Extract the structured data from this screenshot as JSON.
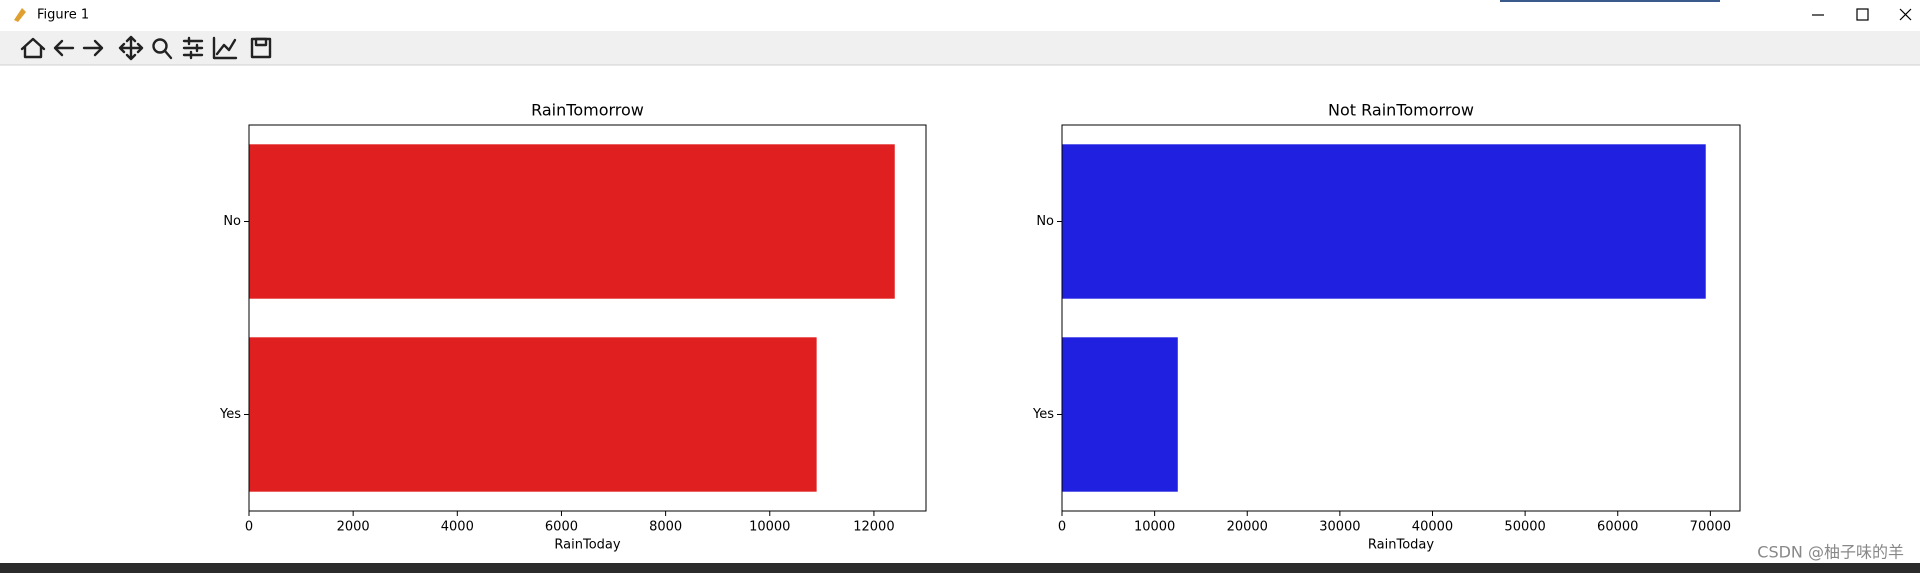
{
  "window": {
    "title": "Figure 1"
  },
  "chart_data": [
    {
      "type": "barh",
      "title": "RainTomorrow",
      "xlabel": "RainToday",
      "categories": [
        "No",
        "Yes"
      ],
      "values": [
        12400,
        10900
      ],
      "color": "#e02020",
      "xlim": [
        0,
        13000
      ],
      "xticks": [
        0,
        2000,
        4000,
        6000,
        8000,
        10000,
        12000
      ]
    },
    {
      "type": "barh",
      "title": "Not RainTomorrow",
      "xlabel": "RainToday",
      "categories": [
        "No",
        "Yes"
      ],
      "values": [
        69500,
        12500
      ],
      "color": "#2020e0",
      "xlim": [
        0,
        73200
      ],
      "xticks": [
        0,
        10000,
        20000,
        30000,
        40000,
        50000,
        60000,
        70000
      ]
    }
  ],
  "watermark": "CSDN @柚子味的羊"
}
